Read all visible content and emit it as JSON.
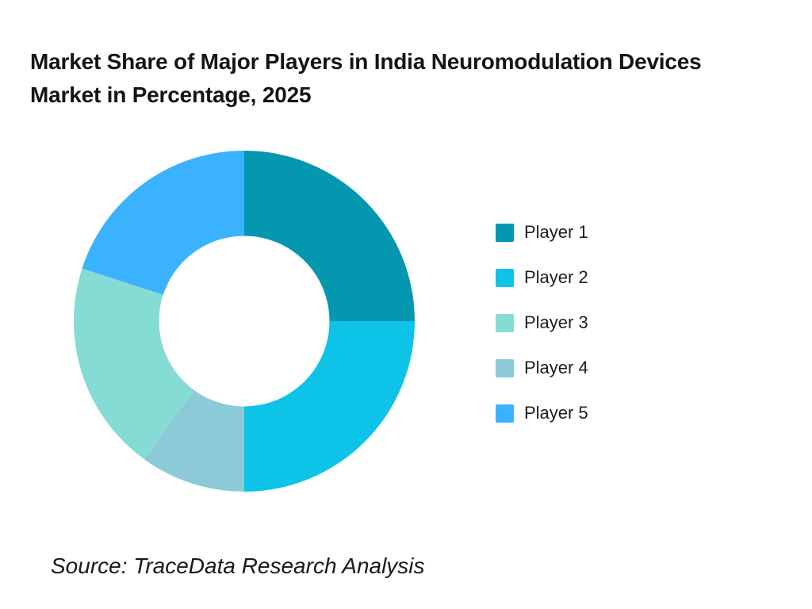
{
  "page": {
    "background": "#ffffff"
  },
  "title_lines": [
    "Market Share of Major Players in India Neuromodulation Devices",
    "Market in Percentage, 2025"
  ],
  "source_note": "Source: TraceData Research Analysis",
  "chart_data": {
    "type": "pie",
    "subtype": "donut",
    "title": "Market Share of Major Players in India Neuromodulation Devices Market in Percentage, 2025",
    "unit": "percent",
    "series": [
      {
        "name": "Player 1",
        "value": 25,
        "color": "#0596B0"
      },
      {
        "name": "Player 2",
        "value": 25,
        "color": "#0DC3E8"
      },
      {
        "name": "Player 3",
        "value": 20,
        "color": "#85DCD5"
      },
      {
        "name": "Player 4",
        "value": 10,
        "color": "#8CCAD8"
      },
      {
        "name": "Player 5",
        "value": 20,
        "color": "#3BB2FD"
      }
    ],
    "legend": [
      "Player 1",
      "Player 2",
      "Player 3",
      "Player 4",
      "Player 5"
    ],
    "legend_position": "right",
    "draw_order": [
      "Player 1",
      "Player 2",
      "Player 4",
      "Player 3",
      "Player 5"
    ],
    "start_angle_deg": 0,
    "direction": "clockwise",
    "inner_radius_ratio": 0.5,
    "hole_color": "#ffffff"
  }
}
